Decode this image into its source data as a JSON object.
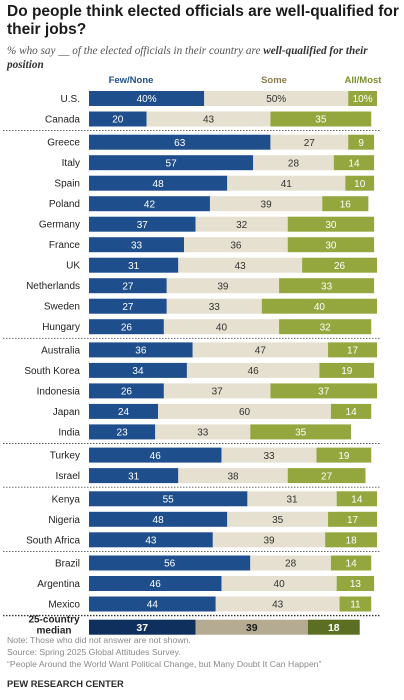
{
  "title": "Do people think elected officials are well-qualified for their jobs?",
  "subtitle": {
    "lead": "% who say __ of the elected officials in their country are ",
    "emphasis": "well-qualified for their position"
  },
  "chart_data": {
    "type": "bar",
    "stacked": true,
    "orientation": "horizontal",
    "xlim": [
      0,
      100
    ],
    "series": [
      {
        "name": "Few/None",
        "color": "#1f4e8c",
        "label_color": "#ffffff",
        "values": [
          40,
          20,
          63,
          57,
          48,
          42,
          37,
          33,
          31,
          27,
          27,
          26,
          36,
          34,
          26,
          24,
          23,
          46,
          31,
          55,
          48,
          43,
          56,
          46,
          44,
          37
        ]
      },
      {
        "name": "Some",
        "color": "#e6e0d0",
        "label_color": "#333333",
        "values": [
          50,
          43,
          27,
          28,
          41,
          39,
          32,
          36,
          43,
          39,
          33,
          40,
          47,
          46,
          37,
          60,
          33,
          33,
          38,
          31,
          35,
          39,
          28,
          40,
          43,
          39
        ]
      },
      {
        "name": "All/Most",
        "color": "#93a73e",
        "label_color": "#ffffff",
        "values": [
          10,
          35,
          9,
          14,
          10,
          16,
          30,
          30,
          26,
          33,
          40,
          32,
          17,
          19,
          37,
          14,
          35,
          19,
          27,
          14,
          17,
          18,
          14,
          13,
          11,
          18
        ]
      }
    ],
    "categories": [
      "U.S.",
      "Canada",
      "Greece",
      "Italy",
      "Spain",
      "Poland",
      "Germany",
      "France",
      "UK",
      "Netherlands",
      "Sweden",
      "Hungary",
      "Australia",
      "South Korea",
      "Indonesia",
      "Japan",
      "India",
      "Turkey",
      "Israel",
      "Kenya",
      "Nigeria",
      "South Africa",
      "Brazil",
      "Argentina",
      "Mexico",
      "25-country median"
    ],
    "value_suffix_first_row": "%",
    "groups": [
      {
        "rows": [
          0,
          1
        ]
      },
      {
        "rows": [
          2,
          3,
          4,
          5,
          6,
          7,
          8,
          9,
          10,
          11
        ]
      },
      {
        "rows": [
          12,
          13,
          14,
          15,
          16
        ]
      },
      {
        "rows": [
          17,
          18
        ]
      },
      {
        "rows": [
          19,
          20,
          21
        ]
      },
      {
        "rows": [
          22,
          23,
          24
        ]
      },
      {
        "rows": [
          25
        ],
        "median": true,
        "colors": [
          "#0f2f5c",
          "#b4ab92",
          "#5b6e22"
        ],
        "label_colors": [
          "#ffffff",
          "#1a1a1a",
          "#ffffff"
        ]
      }
    ],
    "legend_position": "top",
    "legend_colors": [
      "#1f4e8c",
      "#8a7a52",
      "#7a8f2e"
    ],
    "grid": false
  },
  "notes": {
    "note": "Note: Those who did not answer are not shown.",
    "source": "Source: Spring 2025 Global Attitudes Survey.",
    "report": "“People Around the World Want Political Change, but Many Doubt It Can Happen”"
  },
  "footer": "PEW RESEARCH CENTER"
}
